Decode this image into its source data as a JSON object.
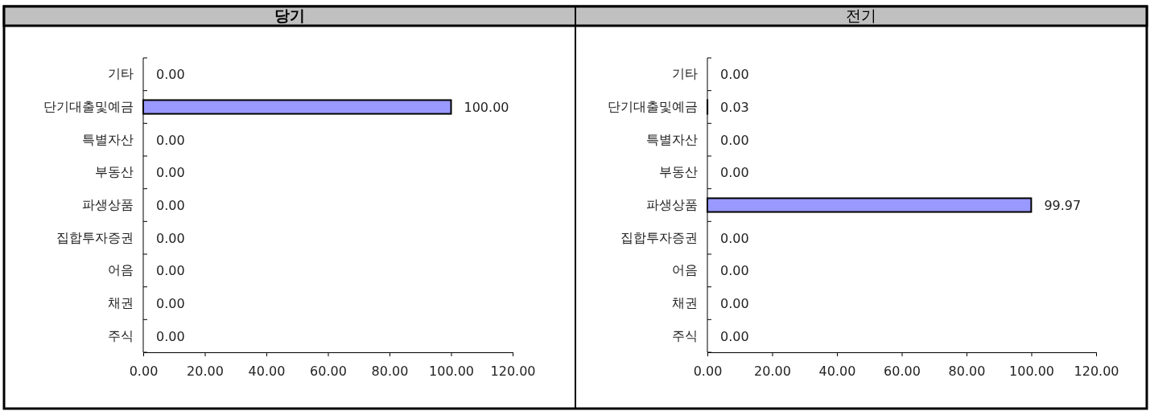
{
  "chart_data": [
    {
      "type": "bar",
      "orientation": "horizontal",
      "title": "당기",
      "categories": [
        "기타",
        "단기대출및예금",
        "특별자산",
        "부동산",
        "파생상품",
        "집합투자증권",
        "어음",
        "채권",
        "주식"
      ],
      "values": [
        0,
        100,
        0,
        0,
        0,
        0,
        0,
        0,
        0
      ],
      "value_labels": [
        "0.00",
        "100.00",
        "0.00",
        "0.00",
        "0.00",
        "0.00",
        "0.00",
        "0.00",
        "0.00"
      ],
      "color": "#9999ff",
      "xlim": [
        0,
        120
      ],
      "xticks": [
        {
          "value": 0,
          "label": "0.00"
        },
        {
          "value": 20,
          "label": "20.00"
        },
        {
          "value": 40,
          "label": "40.00"
        },
        {
          "value": 60,
          "label": "60.00"
        },
        {
          "value": 80,
          "label": "80.00"
        },
        {
          "value": 100,
          "label": "100.00"
        },
        {
          "value": 120,
          "label": "120.00"
        }
      ],
      "grid": false
    },
    {
      "type": "bar",
      "orientation": "horizontal",
      "title": "전기",
      "categories": [
        "기타",
        "단기대출및예금",
        "특별자산",
        "부동산",
        "파생상품",
        "집합투자증권",
        "어음",
        "채권",
        "주식"
      ],
      "values": [
        0,
        0.03,
        0,
        0,
        99.97,
        0,
        0,
        0,
        0
      ],
      "value_labels": [
        "0.00",
        "0.03",
        "0.00",
        "0.00",
        "99.97",
        "0.00",
        "0.00",
        "0.00",
        "0.00"
      ],
      "color": "#9999ff",
      "xlim": [
        0,
        120
      ],
      "xticks": [
        {
          "value": 0,
          "label": "0.00"
        },
        {
          "value": 20,
          "label": "20.00"
        },
        {
          "value": 40,
          "label": "40.00"
        },
        {
          "value": 60,
          "label": "60.00"
        },
        {
          "value": 80,
          "label": "80.00"
        },
        {
          "value": 100,
          "label": "100.00"
        },
        {
          "value": 120,
          "label": "120.00"
        }
      ],
      "grid": false
    }
  ]
}
